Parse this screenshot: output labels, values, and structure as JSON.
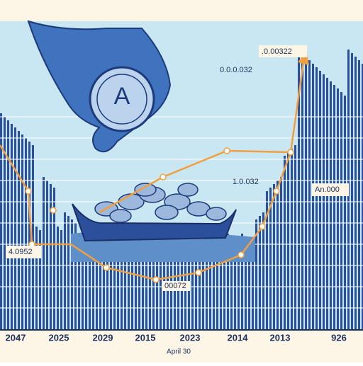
{
  "annotations": [
    ".0.00322",
    "0.0.0.032",
    "1.0.032",
    "An.000",
    "4.0952",
    "00072"
  ],
  "x_labels": [
    "2047",
    "2025",
    "2029",
    "2015",
    "2023",
    "2014",
    "2013",
    "926"
  ],
  "date_label": "April 30",
  "coin_text": "A"
}
